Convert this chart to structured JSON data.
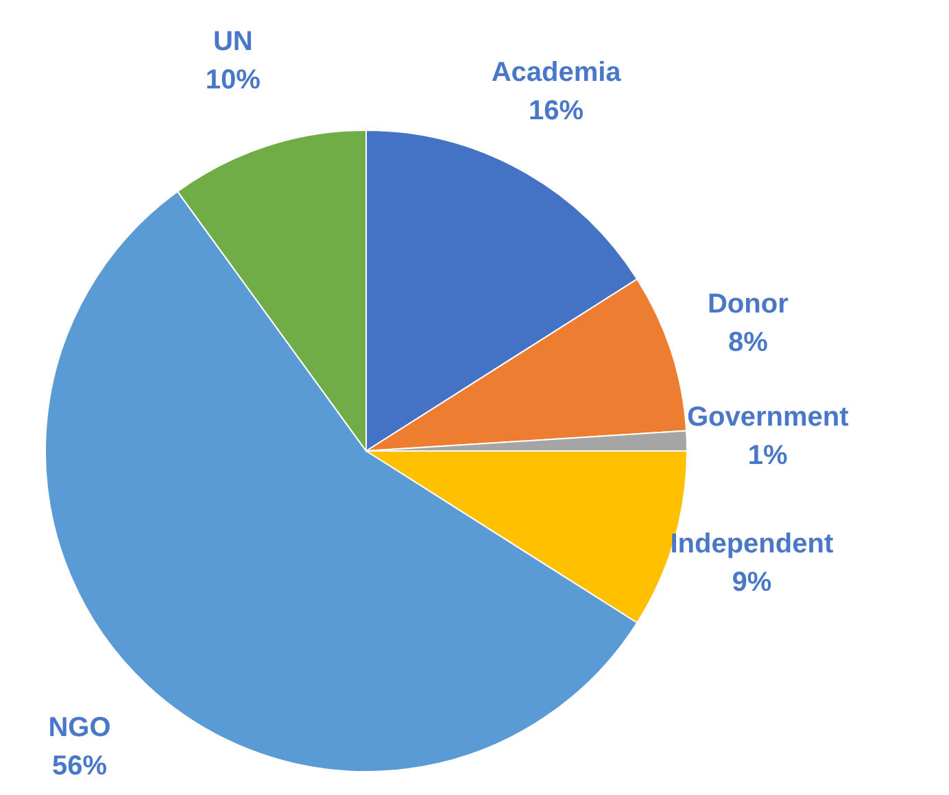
{
  "chart_data": {
    "type": "pie",
    "categories": [
      "Academia",
      "Donor",
      "Government",
      "Independent",
      "NGO",
      "UN"
    ],
    "values": [
      16,
      8,
      1,
      9,
      56,
      10
    ],
    "value_labels": [
      "16%",
      "8%",
      "1%",
      "9%",
      "56%",
      "10%"
    ],
    "colors": [
      "#4472c4",
      "#ed7d31",
      "#a5a5a5",
      "#ffc000",
      "#5b9bd5",
      "#70ad47"
    ]
  }
}
